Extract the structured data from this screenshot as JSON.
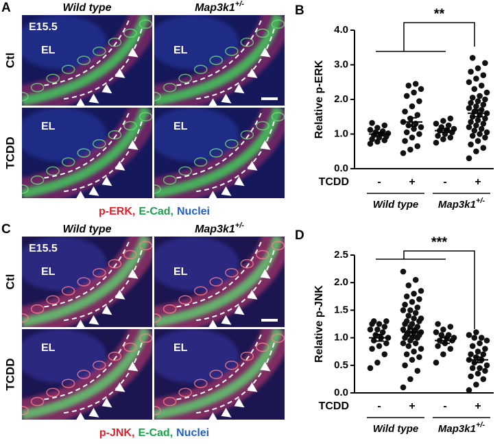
{
  "panels": {
    "A": {
      "letter": "A",
      "columns": [
        {
          "text": "Wild type"
        },
        {
          "text": "Map3k1",
          "sup": "+/-"
        }
      ],
      "rows": [
        "Ctl",
        "TCDD"
      ],
      "stage": "E15.5",
      "lumen": "EL",
      "stain": [
        "p-ERK,",
        "E-Cad,",
        "Nuclei"
      ]
    },
    "C": {
      "letter": "C",
      "columns": [
        {
          "text": "Wild type"
        },
        {
          "text": "Map3k1",
          "sup": "+/-"
        }
      ],
      "rows": [
        "Ctl",
        "TCDD"
      ],
      "stage": "E15.5",
      "lumen": "EL",
      "stain": [
        "p-JNK,",
        "E-Cad,",
        "Nuclei"
      ]
    }
  },
  "chart_data": [
    {
      "type": "strip",
      "panel": "B",
      "ylabel": "Relative p-ERK",
      "row_label": "TCDD",
      "categories": [
        "-",
        "+",
        "-",
        "+"
      ],
      "groups": [
        {
          "text": "Wild type"
        },
        {
          "text": "Map3k1",
          "sup": "+/-"
        }
      ],
      "significance": "**",
      "color": "#111111",
      "ylim": [
        0,
        4
      ],
      "yticks": [
        {
          "value": 0,
          "label": "0.0"
        },
        {
          "value": 1,
          "label": "1.0"
        },
        {
          "value": 2,
          "label": "2.0"
        },
        {
          "value": 3,
          "label": "3.0"
        },
        {
          "value": 4,
          "label": "4.0"
        }
      ],
      "series": [
        {
          "values": [
            0.72,
            0.78,
            0.82,
            0.85,
            0.9,
            0.93,
            0.97,
            1.0,
            1.02,
            1.05,
            1.08,
            1.12,
            1.18,
            1.25,
            1.32
          ],
          "mean": 1.0,
          "sem": 0.05
        },
        {
          "values": [
            0.45,
            0.55,
            0.65,
            0.8,
            0.9,
            1.0,
            1.05,
            1.15,
            1.2,
            1.25,
            1.3,
            1.35,
            1.45,
            1.55,
            1.65,
            1.8,
            1.95,
            2.1,
            2.2,
            2.3,
            2.4,
            2.45
          ],
          "mean": 1.35,
          "sem": 0.12
        },
        {
          "values": [
            0.75,
            0.85,
            0.9,
            0.95,
            1.0,
            1.05,
            1.1,
            1.12,
            1.15,
            1.2,
            1.25,
            1.3,
            1.38,
            1.45
          ],
          "mean": 1.1,
          "sem": 0.05
        },
        {
          "values": [
            0.3,
            0.5,
            0.6,
            0.7,
            0.8,
            0.9,
            0.95,
            1.0,
            1.05,
            1.1,
            1.15,
            1.2,
            1.25,
            1.3,
            1.35,
            1.4,
            1.45,
            1.5,
            1.55,
            1.6,
            1.65,
            1.7,
            1.75,
            1.8,
            1.85,
            1.9,
            1.95,
            2.0,
            2.05,
            2.1,
            2.2,
            2.3,
            2.4,
            2.5,
            2.6,
            2.7,
            2.8,
            2.9,
            3.05,
            3.2
          ],
          "mean": 1.6,
          "sem": 0.1
        }
      ]
    },
    {
      "type": "strip",
      "panel": "D",
      "ylabel": "Relative p-JNK",
      "row_label": "TCDD",
      "categories": [
        "-",
        "+",
        "-",
        "+"
      ],
      "groups": [
        {
          "text": "Wild type"
        },
        {
          "text": "Map3k1",
          "sup": "+/-"
        }
      ],
      "significance": "***",
      "color": "#111111",
      "ylim": [
        0,
        2.5
      ],
      "yticks": [
        {
          "value": 0,
          "label": "0.0"
        },
        {
          "value": 0.5,
          "label": "0.5"
        },
        {
          "value": 1,
          "label": "1.0"
        },
        {
          "value": 1.5,
          "label": "1.5"
        },
        {
          "value": 2,
          "label": "2.0"
        },
        {
          "value": 2.5,
          "label": "2.5"
        }
      ],
      "series": [
        {
          "values": [
            0.45,
            0.55,
            0.7,
            0.8,
            0.85,
            0.9,
            0.95,
            1.0,
            1.0,
            1.05,
            1.1,
            1.15,
            1.15,
            1.2,
            1.25,
            1.25,
            1.3,
            1.3
          ],
          "mean": 1.0,
          "sem": 0.06
        },
        {
          "values": [
            0.1,
            0.25,
            0.4,
            0.5,
            0.6,
            0.65,
            0.7,
            0.75,
            0.8,
            0.85,
            0.9,
            0.9,
            0.95,
            1.0,
            1.0,
            1.0,
            1.05,
            1.05,
            1.1,
            1.1,
            1.1,
            1.15,
            1.15,
            1.2,
            1.2,
            1.25,
            1.25,
            1.3,
            1.3,
            1.35,
            1.35,
            1.4,
            1.45,
            1.5,
            1.5,
            1.55,
            1.6,
            1.65,
            1.7,
            1.75,
            1.8,
            1.85,
            1.95,
            2.05,
            2.2
          ],
          "mean": 1.1,
          "sem": 0.06
        },
        {
          "values": [
            0.55,
            0.7,
            0.8,
            0.85,
            0.9,
            0.95,
            0.95,
            1.0,
            1.0,
            1.05,
            1.05,
            1.1,
            1.15,
            1.2,
            1.25
          ],
          "mean": 0.95,
          "sem": 0.05
        },
        {
          "values": [
            0.05,
            0.15,
            0.25,
            0.3,
            0.35,
            0.4,
            0.45,
            0.45,
            0.5,
            0.55,
            0.6,
            0.6,
            0.65,
            0.7,
            0.7,
            0.75,
            0.8,
            0.85,
            0.9,
            0.95,
            1.0,
            1.0,
            1.05,
            1.1
          ],
          "mean": 0.6,
          "sem": 0.05
        }
      ]
    }
  ]
}
